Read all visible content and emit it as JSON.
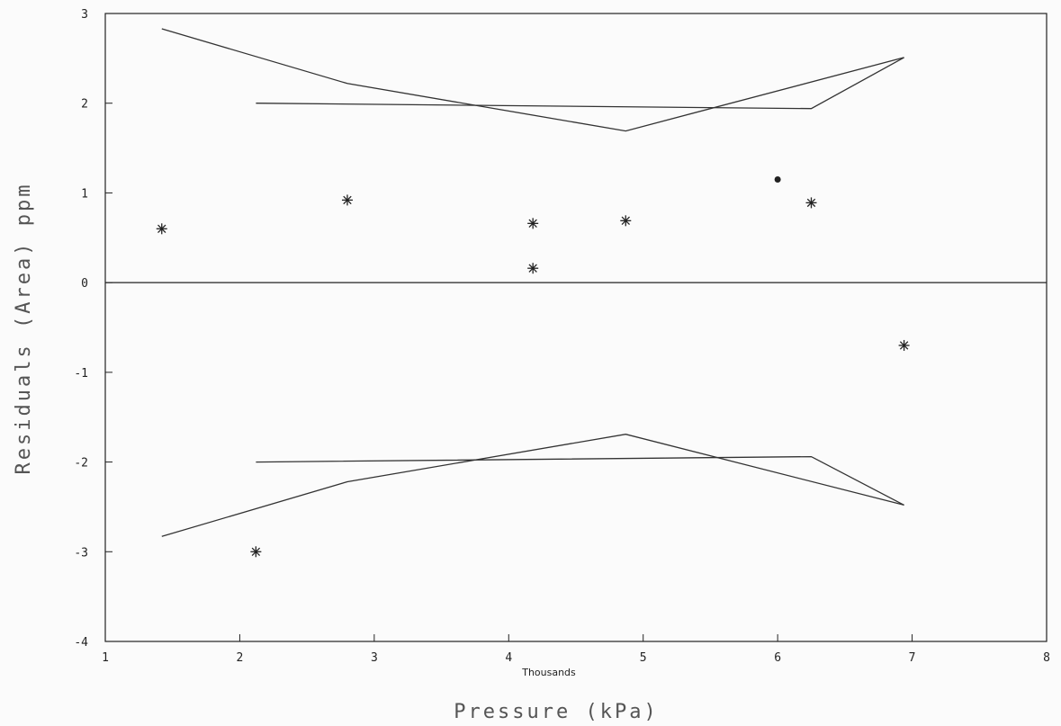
{
  "chart_data": {
    "type": "scatter",
    "xlabel": "Pressure (kPa)",
    "x_multiplier_label": "Thousands",
    "ylabel": "Residuals (Area) ppm",
    "xlim": [
      1,
      8
    ],
    "ylim": [
      -4,
      3
    ],
    "x_ticks": [
      "1",
      "2",
      "3",
      "4",
      "5",
      "6",
      "7",
      "8"
    ],
    "y_ticks": [
      "3",
      "2",
      "1",
      "0",
      "-1",
      "-2",
      "-3",
      "-4"
    ],
    "zero_line": true,
    "grid": false,
    "points": [
      {
        "x": 1.42,
        "y": 0.6
      },
      {
        "x": 2.12,
        "y": -3.0
      },
      {
        "x": 2.8,
        "y": 0.92
      },
      {
        "x": 4.18,
        "y": 0.66
      },
      {
        "x": 4.18,
        "y": 0.16
      },
      {
        "x": 4.87,
        "y": 0.69
      },
      {
        "x": 6.25,
        "y": 0.89
      },
      {
        "x": 6.94,
        "y": -0.7
      }
    ],
    "dot_points": [
      {
        "x": 6.0,
        "y": 1.15
      }
    ],
    "bands": [
      {
        "x": [
          1.42,
          2.8,
          4.87,
          6.94
        ],
        "y": [
          2.83,
          2.22,
          1.69,
          2.51
        ]
      },
      {
        "x": [
          2.12,
          6.25,
          6.94
        ],
        "y": [
          2.0,
          1.94,
          2.51
        ]
      },
      {
        "x": [
          1.42,
          2.8,
          4.87,
          6.94
        ],
        "y": [
          -2.83,
          -2.22,
          -1.69,
          -2.48
        ]
      },
      {
        "x": [
          2.12,
          6.25,
          6.94
        ],
        "y": [
          -2.0,
          -1.94,
          -2.48
        ]
      }
    ]
  }
}
